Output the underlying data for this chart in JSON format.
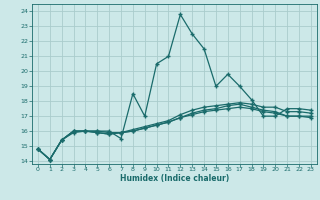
{
  "xlabel": "Humidex (Indice chaleur)",
  "bg_color": "#cce8e8",
  "grid_color": "#aacccc",
  "line_color": "#1a6b6b",
  "xlim": [
    -0.5,
    23.5
  ],
  "ylim": [
    13.8,
    24.5
  ],
  "xticks": [
    0,
    1,
    2,
    3,
    4,
    5,
    6,
    7,
    8,
    9,
    10,
    11,
    12,
    13,
    14,
    15,
    16,
    17,
    18,
    19,
    20,
    21,
    22,
    23
  ],
  "yticks": [
    14,
    15,
    16,
    17,
    18,
    19,
    20,
    21,
    22,
    23,
    24
  ],
  "line1_x": [
    0,
    1,
    2,
    3,
    4,
    5,
    6,
    7,
    8,
    9,
    10,
    11,
    12,
    13,
    14,
    15,
    16,
    17,
    18,
    19,
    20,
    21,
    22,
    23
  ],
  "line1_y": [
    14.8,
    14.1,
    15.4,
    16.0,
    16.0,
    16.0,
    16.0,
    15.5,
    18.5,
    17.0,
    20.5,
    21.0,
    23.8,
    22.5,
    21.5,
    19.0,
    19.8,
    19.0,
    18.1,
    17.0,
    17.0,
    17.5,
    17.5,
    17.4
  ],
  "line2_x": [
    0,
    1,
    2,
    3,
    4,
    5,
    6,
    7,
    8,
    9,
    10,
    11,
    12,
    13,
    14,
    15,
    16,
    17,
    18,
    19,
    20,
    21,
    22,
    23
  ],
  "line2_y": [
    14.8,
    14.1,
    15.4,
    16.0,
    16.0,
    15.9,
    15.8,
    15.9,
    16.1,
    16.3,
    16.5,
    16.7,
    17.1,
    17.4,
    17.6,
    17.7,
    17.8,
    17.9,
    17.8,
    17.6,
    17.6,
    17.3,
    17.3,
    17.2
  ],
  "line3_x": [
    0,
    1,
    2,
    3,
    4,
    5,
    6,
    7,
    8,
    9,
    10,
    11,
    12,
    13,
    14,
    15,
    16,
    17,
    18,
    19,
    20,
    21,
    22,
    23
  ],
  "line3_y": [
    14.8,
    14.1,
    15.4,
    16.0,
    16.0,
    15.9,
    15.8,
    15.9,
    16.0,
    16.2,
    16.4,
    16.6,
    16.9,
    17.1,
    17.3,
    17.4,
    17.5,
    17.6,
    17.5,
    17.3,
    17.2,
    17.0,
    17.0,
    17.0
  ],
  "line4_x": [
    0,
    1,
    2,
    3,
    4,
    5,
    6,
    7,
    8,
    9,
    10,
    11,
    12,
    13,
    14,
    15,
    16,
    17,
    18,
    19,
    20,
    21,
    22,
    23
  ],
  "line4_y": [
    14.8,
    14.1,
    15.4,
    15.9,
    16.0,
    16.0,
    15.9,
    15.9,
    16.0,
    16.2,
    16.4,
    16.6,
    16.9,
    17.2,
    17.4,
    17.5,
    17.7,
    17.8,
    17.6,
    17.4,
    17.3,
    17.0,
    17.0,
    16.9
  ]
}
